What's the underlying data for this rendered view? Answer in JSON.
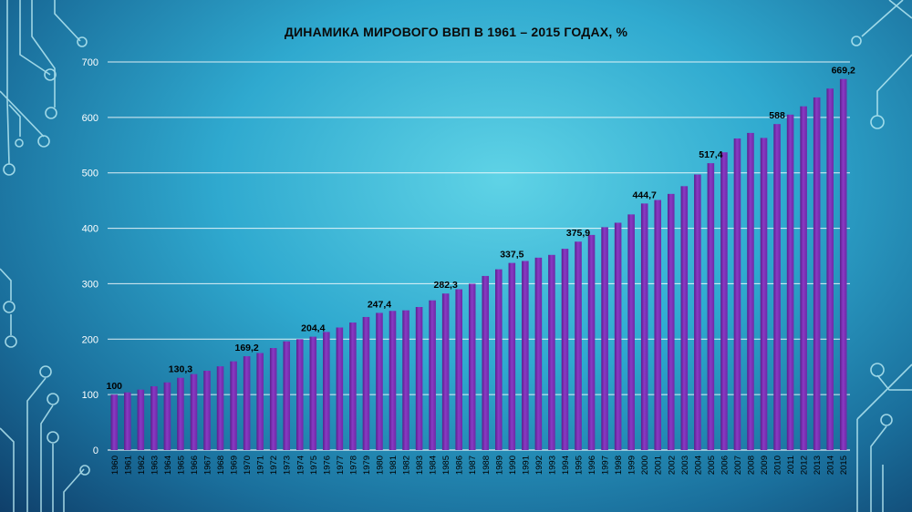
{
  "chart_data": {
    "type": "bar",
    "title": "ДИНАМИКА МИРОВОГО ВВП В 1961 – 2015 ГОДАХ, %",
    "xlabel": "",
    "ylabel": "",
    "ylim": [
      0,
      700
    ],
    "yticks": [
      0,
      100,
      200,
      300,
      400,
      500,
      600,
      700
    ],
    "grid": true,
    "legend": "none",
    "colors": {
      "bar": "#7a2fb3",
      "bar_light": "#a24fd6",
      "grid": "#ffffff",
      "text": "#000000",
      "tick_text": "#ffffff"
    },
    "categories": [
      "1960",
      "1961",
      "1962",
      "1963",
      "1964",
      "1965",
      "1966",
      "1967",
      "1968",
      "1969",
      "1970",
      "1971",
      "1972",
      "1973",
      "1974",
      "1975",
      "1976",
      "1977",
      "1978",
      "1979",
      "1980",
      "1981",
      "1982",
      "1983",
      "1984",
      "1985",
      "1986",
      "1987",
      "1988",
      "1989",
      "1990",
      "1991",
      "1992",
      "1993",
      "1994",
      "1995",
      "1996",
      "1997",
      "1998",
      "1999",
      "2000",
      "2001",
      "2002",
      "2003",
      "2004",
      "2005",
      "2006",
      "2007",
      "2008",
      "2009",
      "2010",
      "2011",
      "2012",
      "2013",
      "2014",
      "2015"
    ],
    "values": [
      100,
      104,
      109,
      115,
      122,
      130.3,
      137,
      143,
      151,
      160,
      169.2,
      175,
      184,
      196,
      200,
      204.4,
      213,
      221,
      230,
      240,
      247.4,
      251,
      252,
      258,
      270,
      282.3,
      290,
      300,
      314,
      326,
      337.5,
      341,
      347,
      352,
      363,
      375.9,
      388,
      402,
      410,
      425,
      444.7,
      451,
      462,
      476,
      497,
      517.4,
      537,
      562,
      572,
      563,
      588,
      605,
      620,
      636,
      652,
      669.2
    ],
    "data_labels": [
      {
        "index": 0,
        "text": "100"
      },
      {
        "index": 5,
        "text": "130,3"
      },
      {
        "index": 10,
        "text": "169,2"
      },
      {
        "index": 15,
        "text": "204,4"
      },
      {
        "index": 20,
        "text": "247,4"
      },
      {
        "index": 25,
        "text": "282,3"
      },
      {
        "index": 30,
        "text": "337,5"
      },
      {
        "index": 35,
        "text": "375,9"
      },
      {
        "index": 40,
        "text": "444,7"
      },
      {
        "index": 45,
        "text": "517,4"
      },
      {
        "index": 50,
        "text": "588"
      },
      {
        "index": 55,
        "text": "669,2"
      }
    ]
  }
}
